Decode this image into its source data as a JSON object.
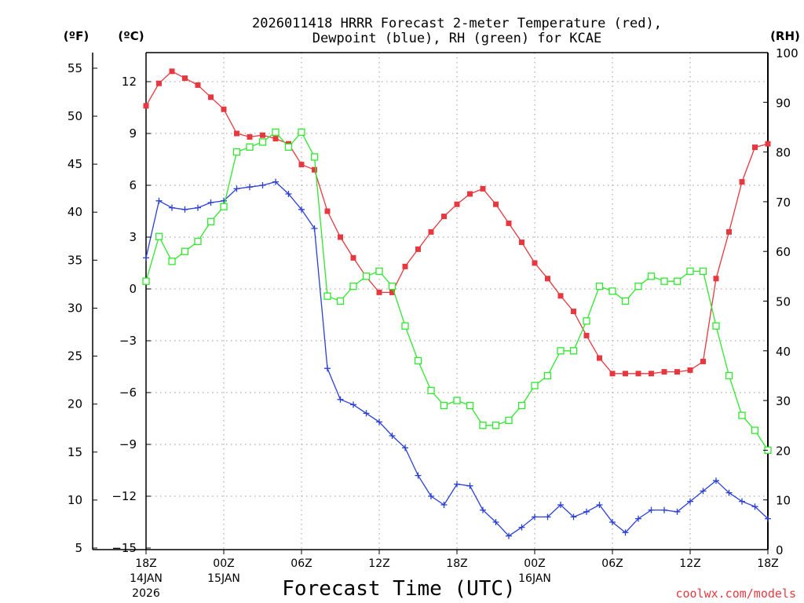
{
  "chart_data": {
    "type": "line",
    "title_line1": "2026011418 HRRR Forecast 2-meter Temperature (red),",
    "title_line2": "Dewpoint (blue), RH (green) for KCAE",
    "units": {
      "fahrenheit": "(ºF)",
      "celsius": "(ºC)",
      "rh": "(RH)"
    },
    "xlabel": "Forecast Time (UTC)",
    "credit": "coolwx.com/models",
    "x_ticks": [
      {
        "hour": 0,
        "label": "18Z",
        "date": "14JAN",
        "year": "2026"
      },
      {
        "hour": 6,
        "label": "00Z",
        "date": "15JAN",
        "year": ""
      },
      {
        "hour": 12,
        "label": "06Z",
        "date": "",
        "year": ""
      },
      {
        "hour": 18,
        "label": "12Z",
        "date": "",
        "year": ""
      },
      {
        "hour": 24,
        "label": "18Z",
        "date": "",
        "year": ""
      },
      {
        "hour": 30,
        "label": "00Z",
        "date": "16JAN",
        "year": ""
      },
      {
        "hour": 36,
        "label": "06Z",
        "date": "",
        "year": ""
      },
      {
        "hour": 42,
        "label": "12Z",
        "date": "",
        "year": ""
      },
      {
        "hour": 48,
        "label": "18Z",
        "date": "",
        "year": ""
      }
    ],
    "xlim": [
      0,
      48
    ],
    "celsius_ticks": [
      "12",
      "9",
      "6",
      "3",
      "0",
      "−3",
      "−6",
      "−9",
      "−12",
      "−15"
    ],
    "celsius_values": [
      12,
      9,
      6,
      3,
      0,
      -3,
      -6,
      -9,
      -12,
      -15
    ],
    "fahrenheit_ticks": [
      "55",
      "50",
      "45",
      "40",
      "35",
      "30",
      "25",
      "20",
      "15",
      "10",
      "5"
    ],
    "fahrenheit_values": [
      55,
      50,
      45,
      40,
      35,
      30,
      25,
      20,
      15,
      10,
      5
    ],
    "rh_ticks": [
      "100",
      "90",
      "80",
      "70",
      "60",
      "50",
      "40",
      "30",
      "20",
      "10",
      "0"
    ],
    "rh_values": [
      100,
      90,
      80,
      70,
      60,
      50,
      40,
      30,
      20,
      10,
      0
    ],
    "ylim_celsius": [
      -15,
      13.8
    ],
    "ylim_rh": [
      0,
      100
    ],
    "series": [
      {
        "name": "Temperature",
        "axis": "celsius",
        "color": "#e8383f",
        "marker": "filled-square",
        "hours": [
          0,
          1,
          2,
          3,
          4,
          5,
          6,
          7,
          8,
          9,
          10,
          11,
          12,
          13,
          14,
          15,
          16,
          17,
          18,
          19,
          20,
          21,
          22,
          23,
          24,
          25,
          26,
          27,
          28,
          29,
          30,
          31,
          32,
          33,
          34,
          35,
          36,
          37,
          38,
          39,
          40,
          41,
          42,
          43,
          44,
          45,
          46,
          47,
          48
        ],
        "values": [
          10.6,
          11.9,
          12.6,
          12.2,
          11.8,
          11.1,
          10.4,
          9.0,
          8.8,
          8.9,
          8.7,
          8.4,
          7.2,
          6.9,
          4.5,
          3.0,
          1.8,
          0.7,
          -0.2,
          -0.2,
          1.3,
          2.3,
          3.3,
          4.2,
          4.9,
          5.5,
          5.8,
          4.9,
          3.8,
          2.7,
          1.5,
          0.6,
          -0.4,
          -1.3,
          -2.7,
          -4.0,
          -4.9,
          -4.9,
          -4.9,
          -4.9,
          -4.8,
          -4.8,
          -4.7,
          -4.2,
          0.6,
          3.3,
          6.2,
          8.2,
          8.4
        ]
      },
      {
        "name": "Dewpoint",
        "axis": "celsius",
        "color": "#2a3fd8",
        "marker": "plus",
        "hours": [
          0,
          1,
          2,
          3,
          4,
          5,
          6,
          7,
          8,
          9,
          10,
          11,
          12,
          13,
          14,
          15,
          16,
          17,
          18,
          19,
          20,
          21,
          22,
          23,
          24,
          25,
          26,
          27,
          28,
          29,
          30,
          31,
          32,
          33,
          34,
          35,
          36,
          37,
          38,
          39,
          40,
          41,
          42,
          43,
          44,
          45,
          46,
          47,
          48
        ],
        "values": [
          1.8,
          5.1,
          4.7,
          4.6,
          4.7,
          5.0,
          5.1,
          5.8,
          5.9,
          6.0,
          6.2,
          5.5,
          4.6,
          3.5,
          -4.6,
          -6.4,
          -6.7,
          -7.2,
          -7.7,
          -8.5,
          -9.2,
          -10.8,
          -12.0,
          -12.5,
          -11.3,
          -11.4,
          -12.8,
          -13.5,
          -14.3,
          -13.8,
          -13.2,
          -13.2,
          -12.5,
          -13.2,
          -12.9,
          -12.5,
          -13.5,
          -14.1,
          -13.3,
          -12.8,
          -12.8,
          -12.9,
          -12.3,
          -11.7,
          -11.1,
          -11.8,
          -12.3,
          -12.6,
          -13.3
        ]
      },
      {
        "name": "RH",
        "axis": "rh",
        "color": "#2ee82e",
        "marker": "open-square",
        "hours": [
          0,
          1,
          2,
          3,
          4,
          5,
          6,
          7,
          8,
          9,
          10,
          11,
          12,
          13,
          14,
          15,
          16,
          17,
          18,
          19,
          20,
          21,
          22,
          23,
          24,
          25,
          26,
          27,
          28,
          29,
          30,
          31,
          32,
          33,
          34,
          35,
          36,
          37,
          38,
          39,
          40,
          41,
          42,
          43,
          44,
          45,
          46,
          47,
          48
        ],
        "values": [
          54,
          63,
          58,
          60,
          62,
          66,
          69,
          80,
          81,
          82,
          84,
          81,
          84,
          79,
          51,
          50,
          53,
          55,
          56,
          53,
          45,
          38,
          32,
          29,
          30,
          29,
          25,
          25,
          26,
          29,
          33,
          35,
          40,
          40,
          46,
          53,
          52,
          50,
          53,
          55,
          54,
          54,
          56,
          56,
          45,
          35,
          27,
          24,
          20
        ]
      }
    ]
  }
}
